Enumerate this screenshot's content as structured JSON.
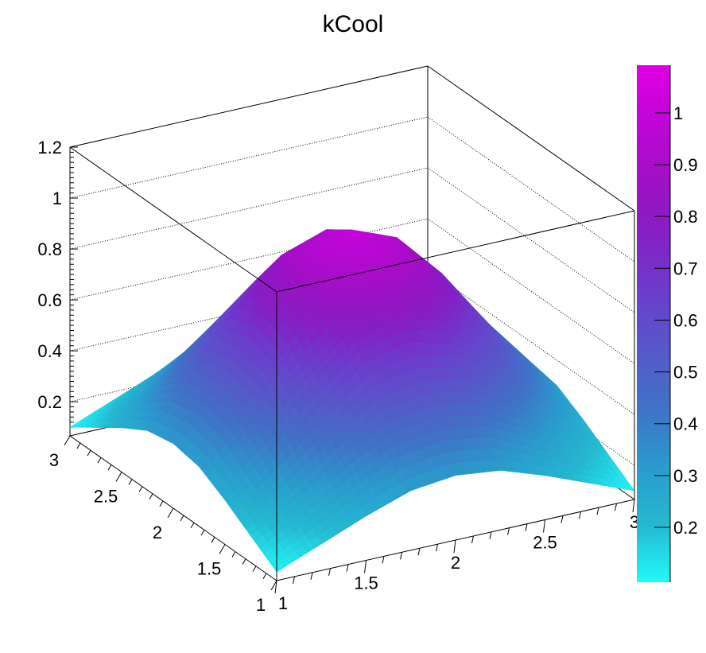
{
  "chart_data": {
    "type": "surface",
    "title": "kCool",
    "palette": "kCool",
    "palette_colors": [
      "#22f8f8",
      "#25b8d0",
      "#2a9bcc",
      "#3f73c6",
      "#5659c8",
      "#6a3fcc",
      "#8420c4",
      "#a010c4",
      "#c005d8",
      "#e000e2"
    ],
    "x": [
      1,
      1.25,
      1.5,
      1.75,
      2,
      2.25,
      2.5,
      2.75,
      3
    ],
    "y": [
      1,
      1.25,
      1.5,
      1.75,
      2,
      2.25,
      2.5,
      2.75,
      3
    ],
    "z": [
      [
        0.1,
        0.17,
        0.24,
        0.3,
        0.32,
        0.3,
        0.24,
        0.17,
        0.1
      ],
      [
        0.17,
        0.27,
        0.39,
        0.49,
        0.52,
        0.49,
        0.39,
        0.27,
        0.17
      ],
      [
        0.24,
        0.39,
        0.56,
        0.7,
        0.75,
        0.7,
        0.56,
        0.39,
        0.24
      ],
      [
        0.3,
        0.49,
        0.7,
        0.87,
        0.93,
        0.87,
        0.7,
        0.49,
        0.3
      ],
      [
        0.32,
        0.52,
        0.75,
        0.93,
        1.0,
        0.93,
        0.75,
        0.52,
        0.32
      ],
      [
        0.3,
        0.49,
        0.7,
        0.87,
        0.93,
        0.87,
        0.7,
        0.49,
        0.3
      ],
      [
        0.24,
        0.39,
        0.56,
        0.7,
        0.75,
        0.7,
        0.56,
        0.39,
        0.24
      ],
      [
        0.17,
        0.27,
        0.39,
        0.49,
        0.52,
        0.49,
        0.39,
        0.27,
        0.17
      ],
      [
        0.1,
        0.17,
        0.24,
        0.3,
        0.32,
        0.3,
        0.24,
        0.17,
        0.1
      ]
    ],
    "xlim": [
      1,
      3
    ],
    "ylim": [
      1,
      3
    ],
    "zlim": [
      0.066,
      1.2
    ],
    "x_ticks": [
      "1",
      "1.5",
      "2",
      "2.5",
      "3"
    ],
    "y_ticks": [
      "1",
      "1.5",
      "2",
      "2.5",
      "3"
    ],
    "z_ticks": [
      "0.2",
      "0.4",
      "0.6",
      "0.8",
      "1",
      "1.2"
    ],
    "colorbar": {
      "range": [
        0.094,
        1.092
      ],
      "ticks": [
        "0.2",
        "0.3",
        "0.4",
        "0.5",
        "0.6",
        "0.7",
        "0.8",
        "0.9",
        "1"
      ]
    },
    "grid": true
  }
}
